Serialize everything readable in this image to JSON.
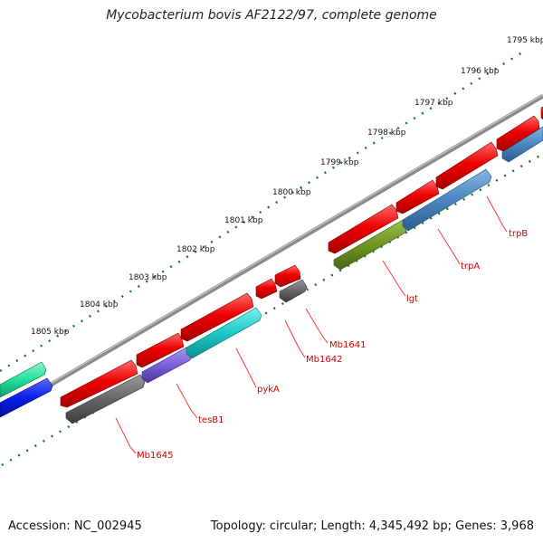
{
  "title": "Mycobacterium bovis AF2122/97, complete genome",
  "footer": {
    "accession": "Accession: NC_002945",
    "stats": "Topology: circular; Length: 4,345,492 bp; Genes: 3,968"
  },
  "colors": {
    "forward_gene": "#ee0000",
    "dashes": "#1a7a1a",
    "backbone": "#8a8a8a",
    "label": "#cc0000",
    "grey_gene": "#666666",
    "cyan_gene": "#1cc8c8",
    "purple_gene": "#7a5fd8",
    "olive_gene": "#6f9424",
    "steel_gene": "#4a86c0",
    "blue_gene": "#0a1ee8",
    "seagreen_gene": "#22e09a"
  },
  "kbp_labels": [
    "1795 kbp",
    "1796 kbp",
    "1797 kbp",
    "1798 kbp",
    "1799 kbp",
    "1800 kbp",
    "1801 kbp",
    "1802 kbp",
    "1803 kbp",
    "1804 kbp",
    "1805 kbp"
  ],
  "gene_labels": [
    "trpB",
    "trpA",
    "lgt",
    "Mb1641",
    "Mb1642",
    "pykA",
    "tesB1",
    "Mb1645"
  ]
}
